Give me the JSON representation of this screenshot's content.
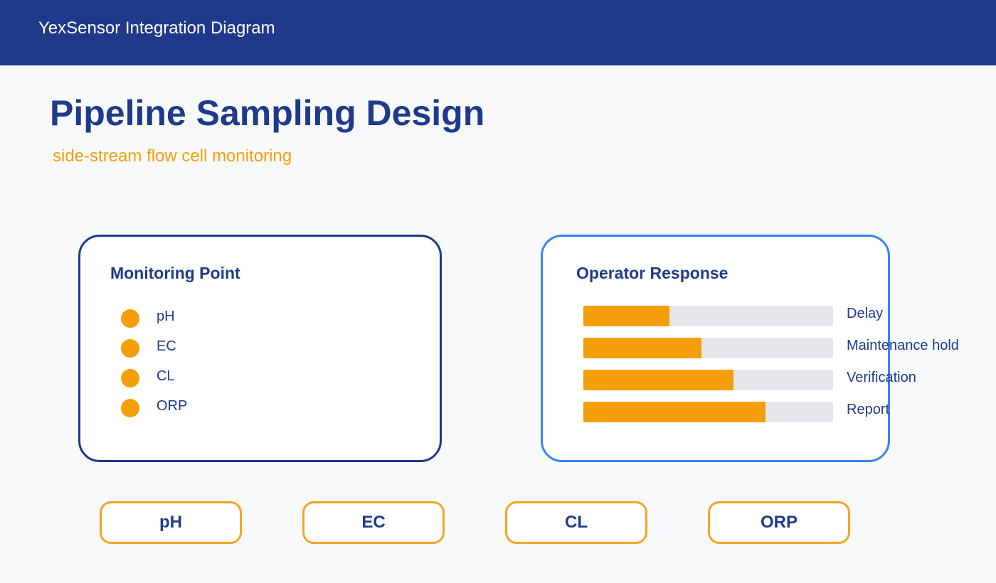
{
  "header": {
    "title": "YexSensor Integration Diagram"
  },
  "page": {
    "title": "Pipeline Sampling Design",
    "subtitle": "side-stream flow cell monitoring"
  },
  "monitoring": {
    "title": "Monitoring Point",
    "items": [
      "pH",
      "EC",
      "CL",
      "ORP"
    ]
  },
  "response": {
    "title": "Operator Response",
    "items": [
      "Delay",
      "Maintenance hold",
      "Verification",
      "Report"
    ]
  },
  "chips": [
    "pH",
    "EC",
    "CL",
    "ORP"
  ]
}
